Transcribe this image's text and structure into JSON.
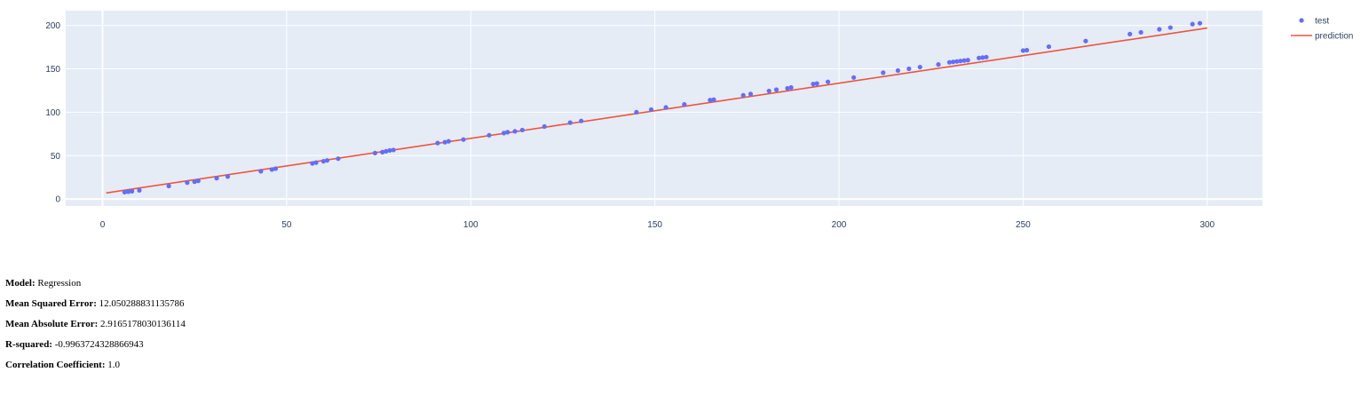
{
  "colors": {
    "plot_bg": "#e5ecf6",
    "grid": "#ffffff",
    "test": "#636efa",
    "prediction": "#ef553b",
    "tick_text": "#2a3f5f"
  },
  "chart_data": {
    "type": "scatter",
    "xlim": [
      -10,
      315
    ],
    "ylim": [
      -8,
      217
    ],
    "x_ticks": [
      0,
      50,
      100,
      150,
      200,
      250,
      300
    ],
    "y_ticks": [
      0,
      50,
      100,
      150,
      200
    ],
    "grid": true,
    "legend_position": "top-right",
    "series": [
      {
        "name": "test",
        "mode": "markers",
        "x": [
          6,
          7,
          8,
          10,
          18,
          23,
          25,
          26,
          31,
          34,
          43,
          46,
          47,
          57,
          58,
          60,
          61,
          64,
          74,
          76,
          77,
          78,
          79,
          91,
          93,
          94,
          98,
          105,
          109,
          110,
          112,
          114,
          120,
          127,
          130,
          145,
          149,
          153,
          158,
          165,
          166,
          174,
          176,
          181,
          183,
          186,
          187,
          193,
          194,
          197,
          204,
          212,
          216,
          219,
          222,
          227,
          230,
          231,
          232,
          233,
          234,
          235,
          238,
          239,
          240,
          250,
          251,
          257,
          267,
          279,
          282,
          287,
          290,
          296,
          298
        ],
        "y": [
          8,
          8.5,
          9,
          10,
          15,
          19,
          20,
          21,
          24,
          26,
          32,
          34,
          35,
          41,
          42,
          43.5,
          44.5,
          46.5,
          53,
          54,
          55,
          56,
          56.5,
          64.5,
          65.5,
          66.5,
          68.5,
          73.5,
          76,
          77,
          78,
          79.5,
          83.5,
          88,
          90,
          100,
          103,
          105.5,
          109,
          114,
          114.5,
          119.5,
          121,
          124.5,
          126,
          127.5,
          128.5,
          132.5,
          133,
          135,
          140,
          145.5,
          148,
          150,
          152,
          155,
          157.5,
          158,
          158.5,
          159,
          159.5,
          160,
          162.5,
          163,
          163.5,
          171,
          171.5,
          175.5,
          182,
          190,
          192,
          195.5,
          197.5,
          201.5,
          202.5
        ]
      },
      {
        "name": "prediction",
        "mode": "lines",
        "x": [
          1,
          300
        ],
        "y": [
          7,
          197
        ]
      }
    ]
  },
  "metrics": [
    {
      "label": "Model:",
      "value": "Regression"
    },
    {
      "label": "Mean Squared Error:",
      "value": "12.050288831135786"
    },
    {
      "label": "Mean Absolute Error:",
      "value": "2.9165178030136114"
    },
    {
      "label": "R-squared:",
      "value": "-0.9963724328866943"
    },
    {
      "label": "Correlation Coefficient:",
      "value": "1.0"
    }
  ]
}
